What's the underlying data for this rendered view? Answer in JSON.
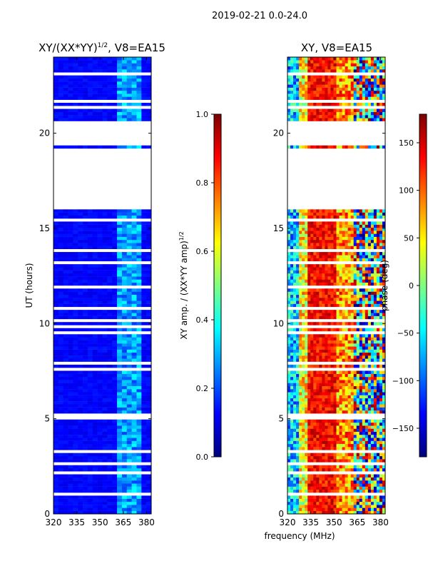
{
  "suptitle": "2019-02-21 0.0-24.0",
  "chart_data": [
    {
      "type": "heatmap",
      "title": "XY/(XX*YY)^1/2, V8=EA15",
      "title_main": "XY/(XX*YY)",
      "title_exp": "1/2",
      "title_tail": ", V8=EA15",
      "xlabel": "",
      "ylabel": "UT (hours)",
      "xlim": [
        320,
        383
      ],
      "ylim": [
        0,
        24
      ],
      "x_ticks": [
        320,
        335,
        350,
        365,
        380
      ],
      "y_ticks": [
        0,
        5,
        10,
        15,
        20
      ],
      "colorbar": {
        "label": "XY amp. / (XX*YY amp)^1/2",
        "label_main": "XY amp. / (XX*YY amp)",
        "label_exp": "1/2",
        "range": [
          0.0,
          1.0
        ],
        "ticks": [
          "0.0",
          "0.2",
          "0.4",
          "0.6",
          "0.8",
          "1.0"
        ],
        "tick_values": [
          0.0,
          0.2,
          0.4,
          0.6,
          0.8,
          1.0
        ],
        "colormap": "jet"
      },
      "data_gaps_hours": [
        [
          16.0,
          19.2
        ],
        [
          19.4,
          20.6
        ]
      ],
      "description_values": {
        "typical_amplitude": 0.12,
        "band_365_380_amplitude": 0.3
      }
    },
    {
      "type": "heatmap",
      "title": "XY, V8=EA15",
      "xlabel": "frequency (MHz)",
      "ylabel": "",
      "xlim": [
        320,
        383
      ],
      "ylim": [
        0,
        24
      ],
      "x_ticks": [
        320,
        335,
        350,
        365,
        380
      ],
      "y_ticks": [
        0,
        5,
        10,
        15,
        20
      ],
      "colorbar": {
        "label": "phase (deg)",
        "range": [
          -180,
          180
        ],
        "ticks": [
          "−150",
          "−100",
          "−50",
          "0",
          "50",
          "100",
          "150"
        ],
        "tick_values": [
          -150,
          -100,
          -50,
          0,
          50,
          100,
          150
        ],
        "colormap": "jet"
      },
      "data_gaps_hours": [
        [
          16.0,
          19.2
        ],
        [
          19.4,
          20.6
        ]
      ]
    }
  ],
  "colors": {
    "jet": [
      "#00007f",
      "#0000ff",
      "#007fff",
      "#00ffff",
      "#7fff7f",
      "#ffff00",
      "#ff7f00",
      "#ff0000",
      "#7f0000"
    ]
  }
}
